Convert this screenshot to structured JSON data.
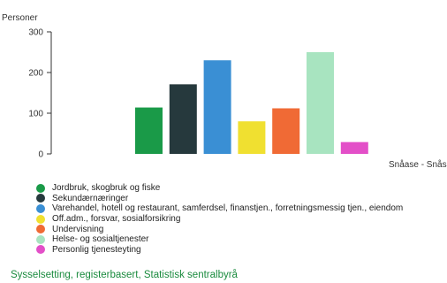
{
  "chart_data": {
    "type": "bar",
    "ylabel": "Personer",
    "ylim": [
      0,
      300
    ],
    "yticks": [
      0,
      100,
      200,
      300
    ],
    "category_label": "Snåase - Snåsa",
    "grid": false,
    "legend_position": "bottom-left",
    "series": [
      {
        "name": "Jordbruk, skogbruk og fiske",
        "value": 114,
        "color": "#1a9a48"
      },
      {
        "name": "Sekundærnæringer",
        "value": 171,
        "color": "#26393d"
      },
      {
        "name": "Varehandel, hotell og restaurant, samferdsel, finanstjen., forretningsmessig tjen., eiendom",
        "value": 230,
        "color": "#3a8fd4"
      },
      {
        "name": "Off.adm., forsvar, sosialforsikring",
        "value": 80,
        "color": "#f0e030"
      },
      {
        "name": "Undervisning",
        "value": 112,
        "color": "#f06a35"
      },
      {
        "name": "Helse- og sosialtjenester",
        "value": 250,
        "color": "#a8e4c0"
      },
      {
        "name": "Personlig tjenesteyting",
        "value": 29,
        "color": "#e34fc8"
      }
    ]
  },
  "source_link": "Sysselsetting, registerbasert, Statistisk sentralbyrå"
}
